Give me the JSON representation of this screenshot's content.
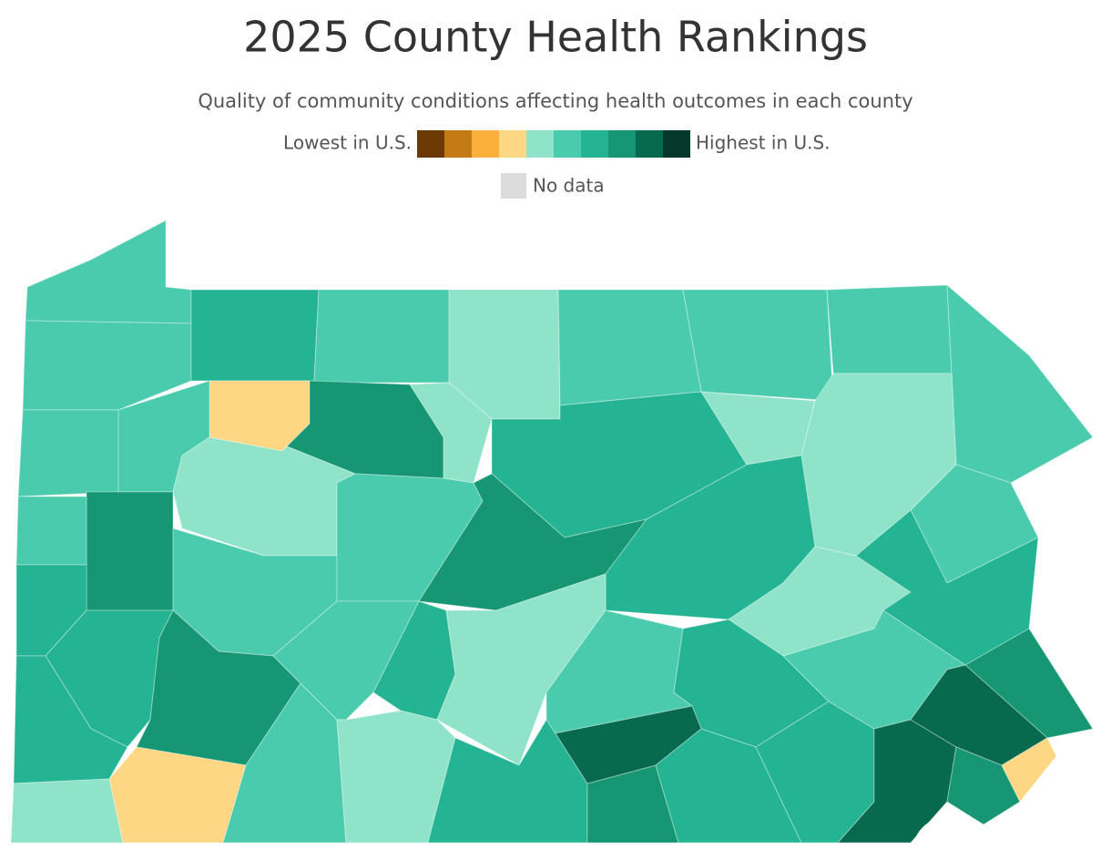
{
  "header": {
    "title": "2025 County Health Rankings",
    "subtitle": "Quality of community conditions affecting health outcomes in each county"
  },
  "legend": {
    "low_label": "Lowest in U.S.",
    "high_label": "Highest in U.S.",
    "no_data_label": "No data",
    "colors": [
      "#6b3a07",
      "#c47a14",
      "#fbb03b",
      "#fdd784",
      "#8ee3c8",
      "#4bcbae",
      "#25b493",
      "#169673",
      "#076a4e",
      "#04382a"
    ],
    "no_data_color": "#dcdcdc"
  }
}
